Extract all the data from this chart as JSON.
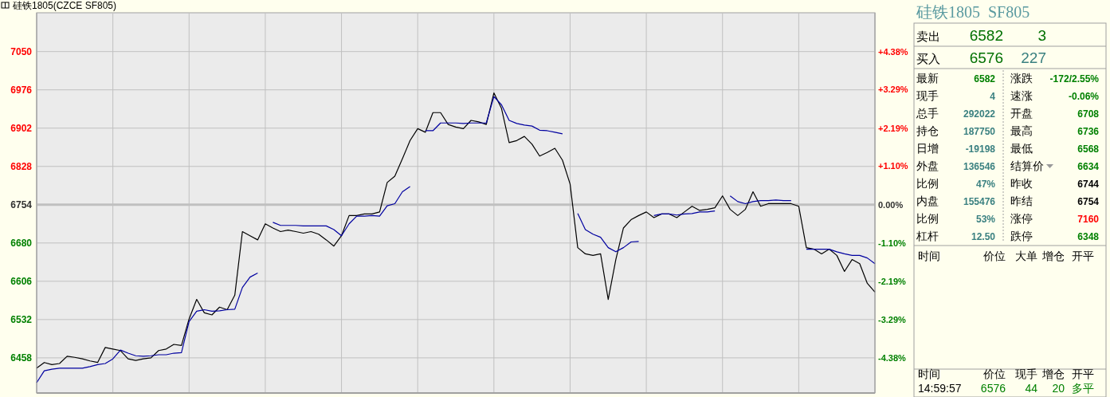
{
  "chart_data": [
    {
      "type": "line",
      "title": "硅铁1805(CZCE SF805)",
      "categories": [
        null,
        null,
        null,
        null,
        null,
        null,
        null,
        null,
        null,
        null,
        null,
        null,
        null,
        null,
        null,
        null,
        null,
        null,
        null,
        null,
        null,
        null,
        null,
        null,
        null,
        null,
        null,
        null,
        null,
        null,
        null,
        null,
        null,
        null,
        null,
        null,
        null,
        null,
        null,
        null,
        null,
        null,
        null,
        null,
        null,
        null,
        null,
        null,
        null,
        null,
        null,
        null,
        null,
        null,
        null,
        null,
        null,
        null,
        null,
        null,
        null,
        null,
        null,
        null,
        null,
        null,
        null,
        null,
        null,
        null,
        null,
        null,
        null,
        null,
        null,
        null,
        null,
        null,
        null,
        null,
        null,
        null,
        null,
        null,
        null,
        null,
        null,
        null,
        null,
        null,
        null,
        null,
        null,
        null,
        null,
        null,
        null,
        null,
        null,
        null,
        null,
        null,
        null,
        null,
        null,
        null,
        null,
        null,
        null,
        null,
        null
      ],
      "series": [
        {
          "color": "#000000",
          "values": [
            6438,
            6449,
            6445,
            6447,
            6461,
            6459,
            6456,
            6452,
            6449,
            6478,
            6475,
            6472,
            6456,
            6453,
            6456,
            6458,
            6472,
            6475,
            6484,
            6482,
            6533,
            6571,
            6545,
            6541,
            6556,
            6551,
            6579,
            6702,
            6694,
            6686,
            6717,
            6709,
            6702,
            6705,
            6702,
            6699,
            6702,
            6697,
            6686,
            6674,
            6694,
            6733,
            6733,
            6736,
            6736,
            6740,
            6797,
            6809,
            6843,
            6878,
            6901,
            6894,
            6932,
            6932,
            6909,
            6904,
            6901,
            6917,
            6914,
            6909,
            6970,
            6940,
            6874,
            6878,
            6886,
            6871,
            6848,
            6855,
            6863,
            6840,
            6794,
            6671,
            6659,
            6656,
            6659,
            6571,
            6648,
            6709,
            6725,
            6733,
            6740,
            6729,
            6736,
            6736,
            6729,
            6740,
            6751,
            6743,
            6745,
            6748,
            6771,
            6745,
            6733,
            6745,
            6779,
            6751,
            6756,
            6756,
            6756,
            6756,
            6751,
            6671,
            6668,
            6659,
            6668,
            6656,
            6625,
            6648,
            6640,
            6602,
            6585
          ]
        },
        {
          "color": "#0000a0",
          "values": [
            6410,
            6433,
            6436,
            6438,
            6438,
            6438,
            6438,
            6441,
            6445,
            6447,
            6456,
            6473,
            6467,
            6462,
            6461,
            6462,
            6464,
            6464,
            6467,
            6468,
            6528,
            6548,
            6551,
            6548,
            6549,
            6551,
            6552,
            6594,
            6614,
            6622,
            null,
            6720,
            6714,
            6714,
            6714,
            6713,
            6713,
            6713,
            6713,
            6706,
            6694,
            6717,
            6732,
            6732,
            6733,
            6732,
            6752,
            6756,
            6779,
            6789,
            null,
            6897,
            6897,
            6912,
            6912,
            6912,
            6911,
            6912,
            6912,
            6912,
            6963,
            6947,
            6917,
            6911,
            6908,
            6906,
            6898,
            6897,
            6894,
            6891,
            null,
            6737,
            6706,
            6697,
            6691,
            6671,
            6663,
            6671,
            6682,
            6683,
            null,
            6733,
            6736,
            6736,
            6734,
            6736,
            6737,
            6740,
            6740,
            6742,
            null,
            6771,
            6760,
            6756,
            6760,
            6762,
            6762,
            6763,
            6762,
            6762,
            null,
            6668,
            6668,
            6668,
            6668,
            6663,
            6659,
            6656,
            6656,
            6651,
            6640
          ]
        }
      ],
      "ylim": [
        6390,
        7125
      ],
      "yticks": [
        6458,
        6532,
        6606,
        6680,
        6754,
        6828,
        6902,
        6976,
        7050
      ],
      "y2lim": [
        -5.39,
        5.49
      ],
      "y2ticks": [
        {
          "value": -4.38,
          "label": "-4.38%"
        },
        {
          "value": -3.29,
          "label": "-3.29%"
        },
        {
          "value": -2.19,
          "label": "-2.19%"
        },
        {
          "value": -1.1,
          "label": "-1.10%"
        },
        {
          "value": 0,
          "label": "0.00%"
        },
        {
          "value": 1.1,
          "label": "+1.10%"
        },
        {
          "value": 2.19,
          "label": "+2.19%"
        },
        {
          "value": 3.29,
          "label": "+3.29%"
        },
        {
          "value": 4.38,
          "label": "+4.38%"
        }
      ],
      "ref_lines": [
        {
          "axis": "y",
          "value": 6754,
          "color": "#c0c0c0"
        }
      ],
      "grid": true
    },
    {
      "type": "other",
      "title": "硅铁1805  SF805",
      "annotations": [
        "卖出",
        "6582",
        "3",
        "买入",
        "6576",
        "227",
        "最新",
        "6582",
        "涨跌",
        "-172/2.55%",
        "现手",
        "4",
        "速涨",
        "-0.06%",
        "总手",
        "292022",
        "开盘",
        "6708",
        "持仓",
        "187750",
        "最高",
        "6736",
        "日增",
        "-19198",
        "最低",
        "6568",
        "外盘",
        "136546",
        "结算价",
        "6634",
        "比例",
        "47%",
        "昨收",
        "6744",
        "内盘",
        "155476",
        "昨结",
        "6754",
        "比例",
        "53%",
        "涨停",
        "7160",
        "杠杆",
        "12.50",
        "跌停",
        "6348",
        "时间",
        "价位",
        "大单",
        "增仓",
        "开平",
        "时间",
        "价位",
        "现手",
        "增仓",
        "开平",
        "14:59:57",
        "6576",
        "44",
        "20",
        "多平"
      ]
    }
  ]
}
